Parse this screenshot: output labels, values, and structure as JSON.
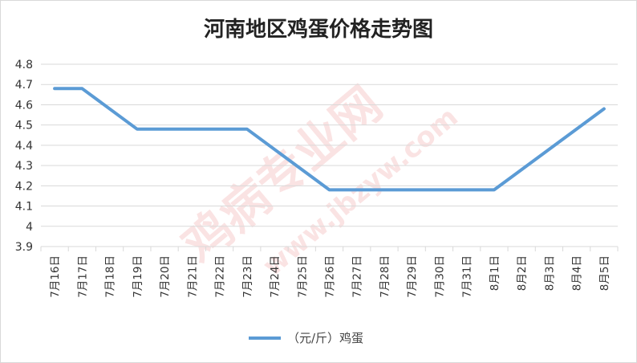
{
  "chart_data": {
    "type": "line",
    "title": "河南地区鸡蛋价格走势图",
    "categories": [
      "7月16日",
      "7月17日",
      "7月18日",
      "7月19日",
      "7月20日",
      "7月21日",
      "7月22日",
      "7月23日",
      "7月24日",
      "7月25日",
      "7月26日",
      "7月27日",
      "7月28日",
      "7月29日",
      "7月30日",
      "7月31日",
      "8月1日",
      "8月2日",
      "8月3日",
      "8月4日",
      "8月5日"
    ],
    "series": [
      {
        "name": "（元/斤）鸡蛋",
        "values": [
          4.68,
          4.68,
          null,
          4.48,
          4.48,
          4.48,
          4.48,
          4.48,
          null,
          null,
          4.18,
          4.18,
          4.18,
          4.18,
          4.18,
          4.18,
          4.18,
          null,
          null,
          null,
          4.58
        ]
      }
    ],
    "ylim": [
      3.9,
      4.8
    ],
    "yticks": [
      "3.9",
      "4",
      "4.1",
      "4.2",
      "4.3",
      "4.4",
      "4.5",
      "4.6",
      "4.7",
      "4.8"
    ],
    "ytick_values": [
      3.9,
      4.0,
      4.1,
      4.2,
      4.3,
      4.4,
      4.5,
      4.6,
      4.7,
      4.8
    ],
    "xlabel": "",
    "ylabel": "",
    "grid": true,
    "legend_position": "bottom-center",
    "line_color": "#5b9bd5",
    "grid_color": "#d9d9d9"
  },
  "watermark": {
    "text": "鸡病专业网",
    "url": "www.jbzyw.com",
    "color": "#e03030"
  }
}
